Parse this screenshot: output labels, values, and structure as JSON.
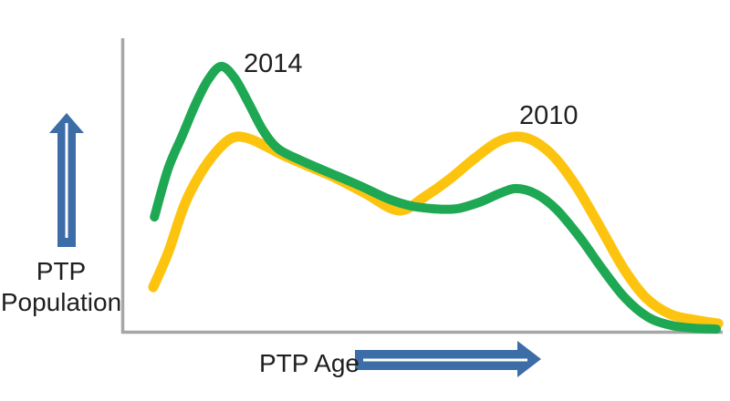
{
  "chart_data": {
    "type": "line",
    "title": "",
    "xlabel": "PTP Age",
    "ylabel": "PTP Population",
    "x_axis": {
      "label": "PTP Age",
      "ticks": [],
      "direction_arrow": "right",
      "range_note": "qualitative, increasing age"
    },
    "y_axis": {
      "label": "PTP Population",
      "ticks": [],
      "direction_arrow": "up",
      "range_note": "qualitative, increasing population"
    },
    "grid": false,
    "legend_position": "none (curve annotations)",
    "colors": {
      "axis": "#a6a6a6",
      "arrow": "#3d6da7",
      "arrow_stripe": "#ffffff",
      "text": "#1f1f1f",
      "background": "#ffffff",
      "series_2014": "#1ea853",
      "series_2010": "#fdc40f"
    },
    "annotations": [
      {
        "text": "2014",
        "attached_to": "green series near its tall first peak"
      },
      {
        "text": "2010",
        "attached_to": "yellow series near its tall second peak"
      }
    ],
    "series": [
      {
        "name": "2010",
        "color": "#fdc40f",
        "stroke_width": 11,
        "shape_note": "bimodal: lower first peak, higher second peak",
        "points": [
          [
            5.3,
            15.2
          ],
          [
            7.8,
            27.0
          ],
          [
            10.5,
            43.2
          ],
          [
            13.2,
            54.0
          ],
          [
            16.0,
            61.8
          ],
          [
            18.5,
            66.1
          ],
          [
            20.8,
            66.1
          ],
          [
            23.6,
            63.7
          ],
          [
            26.9,
            60.2
          ],
          [
            30.7,
            56.8
          ],
          [
            35.3,
            52.8
          ],
          [
            40.6,
            47.2
          ],
          [
            46.2,
            41.3
          ],
          [
            50.5,
            46.0
          ],
          [
            54.6,
            51.9
          ],
          [
            58.8,
            59.0
          ],
          [
            62.6,
            64.6
          ],
          [
            65.8,
            66.5
          ],
          [
            68.8,
            64.9
          ],
          [
            72.2,
            59.3
          ],
          [
            75.8,
            49.4
          ],
          [
            79.8,
            35.4
          ],
          [
            83.7,
            21.4
          ],
          [
            87.4,
            11.5
          ],
          [
            91.5,
            5.9
          ],
          [
            95.6,
            4.0
          ],
          [
            99.4,
            2.8
          ]
        ]
      },
      {
        "name": "2014",
        "color": "#1ea853",
        "stroke_width": 10,
        "shape_note": "bimodal: tall first peak, lower second peak",
        "points": [
          [
            5.5,
            39.1
          ],
          [
            7.8,
            55.6
          ],
          [
            10.2,
            67.1
          ],
          [
            12.3,
            77.3
          ],
          [
            14.4,
            85.7
          ],
          [
            16.6,
            90.4
          ],
          [
            18.8,
            86.6
          ],
          [
            21.1,
            78.3
          ],
          [
            23.6,
            68.6
          ],
          [
            26.1,
            62.4
          ],
          [
            29.9,
            58.4
          ],
          [
            34.5,
            54.3
          ],
          [
            39.8,
            49.7
          ],
          [
            44.4,
            45.3
          ],
          [
            48.2,
            42.9
          ],
          [
            52.0,
            41.9
          ],
          [
            55.8,
            41.9
          ],
          [
            59.6,
            44.1
          ],
          [
            63.1,
            47.2
          ],
          [
            65.8,
            48.8
          ],
          [
            69.1,
            46.9
          ],
          [
            72.5,
            41.6
          ],
          [
            76.3,
            32.3
          ],
          [
            80.1,
            21.4
          ],
          [
            83.9,
            11.5
          ],
          [
            87.7,
            5.0
          ],
          [
            91.5,
            2.2
          ],
          [
            95.3,
            1.2
          ],
          [
            99.1,
            0.9
          ]
        ]
      }
    ]
  }
}
